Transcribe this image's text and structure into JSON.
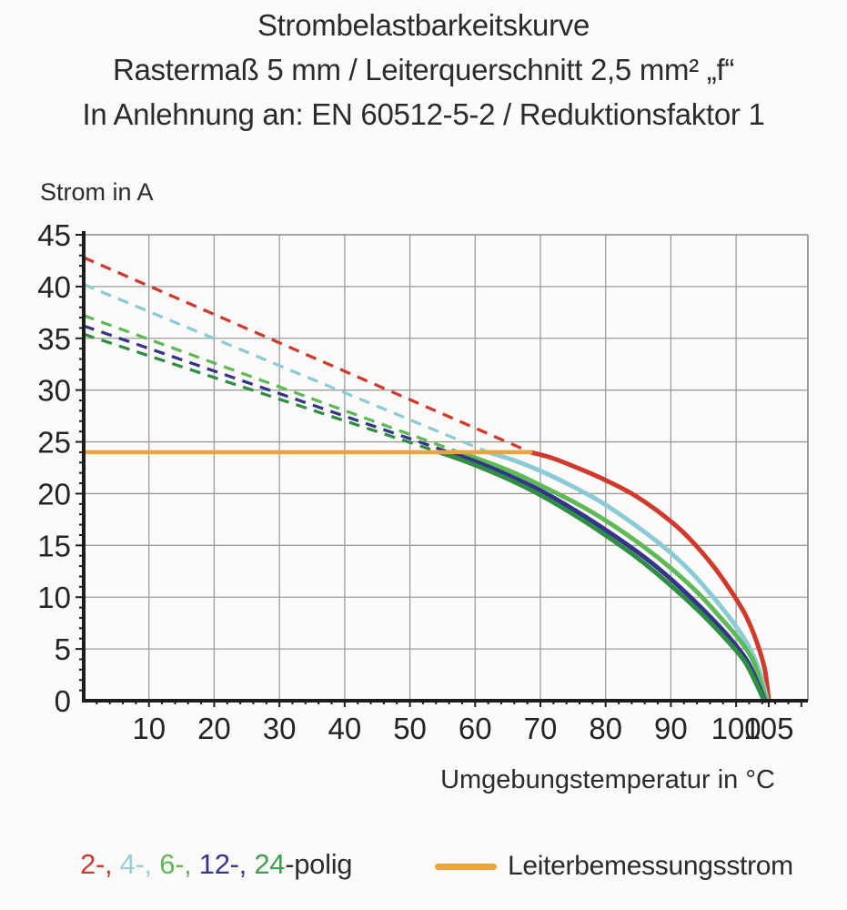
{
  "title": {
    "line1": "Strombelastbarkeitskurve",
    "line2": "Rastermaß 5 mm / Leiterquerschnitt 2,5 mm² „f“",
    "line3": "In Anlehnung an: EN 60512-5-2 / Reduktionsfaktor 1"
  },
  "chart_data": {
    "type": "line",
    "xlabel": "Umgebungstemperatur in °C",
    "ylabel": "Strom in A",
    "xlim": [
      0,
      111
    ],
    "ylim": [
      0,
      45
    ],
    "x_ticks": [
      10,
      20,
      30,
      40,
      50,
      60,
      70,
      80,
      90,
      100,
      105
    ],
    "y_ticks": [
      0,
      5,
      10,
      15,
      20,
      25,
      30,
      35,
      40,
      45
    ],
    "x_minor_step": 2,
    "y_minor_step": 1,
    "grid": {
      "x_step": 10,
      "y_step": 5,
      "color": "#9c9c9c"
    },
    "axis_color": "#1d1d1d",
    "tick_label_color": "#242424",
    "rated_current": {
      "label": "Leiterbemessungsstrom",
      "value": 24,
      "t_start": 0,
      "t_end": 68.5,
      "color": "#f0a23e"
    },
    "series": [
      {
        "name": "2-polig",
        "color": "#d0392b",
        "dashed": [
          [
            0,
            42.8
          ],
          [
            68.5,
            24
          ]
        ],
        "solid": [
          [
            68.5,
            24
          ],
          [
            72,
            23.4
          ],
          [
            76,
            22.4
          ],
          [
            80,
            21.3
          ],
          [
            84,
            20.0
          ],
          [
            88,
            18.3
          ],
          [
            92,
            16.2
          ],
          [
            96,
            13.4
          ],
          [
            99,
            10.8
          ],
          [
            101.5,
            8.2
          ],
          [
            103.2,
            5.6
          ],
          [
            104.4,
            3.0
          ],
          [
            105.0,
            0
          ]
        ]
      },
      {
        "name": "4-polig",
        "color": "#8bcbd6",
        "dashed": [
          [
            0,
            40.2
          ],
          [
            62,
            24
          ]
        ],
        "solid": [
          [
            62,
            24
          ],
          [
            66,
            23.2
          ],
          [
            70,
            22.2
          ],
          [
            74,
            21.0
          ],
          [
            79,
            19.3
          ],
          [
            84,
            17.2
          ],
          [
            89,
            14.8
          ],
          [
            93,
            12.5
          ],
          [
            96.5,
            10.0
          ],
          [
            99.5,
            7.6
          ],
          [
            101.8,
            5.4
          ],
          [
            103.5,
            3.0
          ],
          [
            104.8,
            0
          ]
        ]
      },
      {
        "name": "6-polig",
        "color": "#5eba57",
        "dashed": [
          [
            0,
            37.2
          ],
          [
            57.5,
            24
          ]
        ],
        "solid": [
          [
            57.5,
            24
          ],
          [
            62,
            23.0
          ],
          [
            66,
            22.0
          ],
          [
            71,
            20.5
          ],
          [
            76,
            18.9
          ],
          [
            81,
            17.0
          ],
          [
            86,
            14.8
          ],
          [
            90,
            12.8
          ],
          [
            94,
            10.5
          ],
          [
            97.5,
            8.1
          ],
          [
            100.5,
            5.9
          ],
          [
            102.8,
            3.6
          ],
          [
            104.6,
            0
          ]
        ]
      },
      {
        "name": "12-polig",
        "color": "#35348b",
        "dashed": [
          [
            0,
            36.2
          ],
          [
            56,
            24
          ]
        ],
        "solid": [
          [
            56,
            24
          ],
          [
            60,
            23.1
          ],
          [
            65,
            21.8
          ],
          [
            70,
            20.3
          ],
          [
            75,
            18.5
          ],
          [
            80,
            16.5
          ],
          [
            85,
            14.3
          ],
          [
            89,
            12.3
          ],
          [
            93,
            10.0
          ],
          [
            96.5,
            7.8
          ],
          [
            99.5,
            5.7
          ],
          [
            102,
            3.5
          ],
          [
            104.4,
            0
          ]
        ]
      },
      {
        "name": "24-polig",
        "color": "#2e8f44",
        "dashed": [
          [
            0,
            35.4
          ],
          [
            54.5,
            24
          ]
        ],
        "solid": [
          [
            54.5,
            24
          ],
          [
            59,
            23.0
          ],
          [
            64,
            21.7
          ],
          [
            69,
            20.2
          ],
          [
            74,
            18.4
          ],
          [
            79,
            16.4
          ],
          [
            84,
            14.2
          ],
          [
            88,
            12.2
          ],
          [
            92,
            10.0
          ],
          [
            95.5,
            7.9
          ],
          [
            98.5,
            5.9
          ],
          [
            101.5,
            3.6
          ],
          [
            104.3,
            0
          ]
        ]
      }
    ]
  },
  "legend": {
    "series_parts": [
      {
        "text": "2-, ",
        "color": "#d0392b"
      },
      {
        "text": "4-, ",
        "color": "#96cfd9"
      },
      {
        "text": "6-, ",
        "color": "#5eba57"
      },
      {
        "text": "12-, ",
        "color": "#34348c"
      },
      {
        "text": "24",
        "color": "#3f9e50"
      },
      {
        "text": "-polig",
        "color": "#2d2d2d"
      }
    ],
    "rated_label": "Leiterbemessungsstrom",
    "rated_color": "#f0a23e"
  }
}
